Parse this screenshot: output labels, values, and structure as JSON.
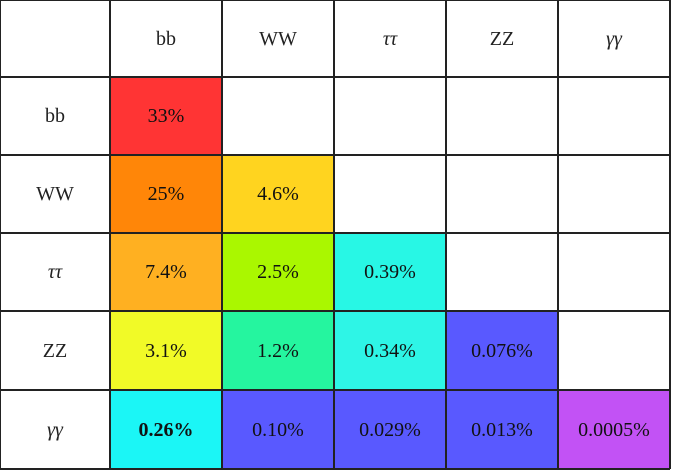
{
  "chart_data": {
    "type": "heatmap",
    "title": "",
    "xlabel": "",
    "ylabel": "",
    "x_categories": [
      "bb",
      "WW",
      "ττ",
      "ZZ",
      "γγ"
    ],
    "y_categories": [
      "bb",
      "WW",
      "ττ",
      "ZZ",
      "γγ"
    ],
    "cells": [
      {
        "row": "bb",
        "col": "bb",
        "value": 33,
        "label": "33%",
        "color": "#ff3434",
        "bold": false
      },
      {
        "row": "WW",
        "col": "bb",
        "value": 25,
        "label": "25%",
        "color": "#ff8608",
        "bold": false
      },
      {
        "row": "WW",
        "col": "WW",
        "value": 4.6,
        "label": "4.6%",
        "color": "#ffd41f",
        "bold": false
      },
      {
        "row": "ττ",
        "col": "bb",
        "value": 7.4,
        "label": "7.4%",
        "color": "#ffb021",
        "bold": false
      },
      {
        "row": "ττ",
        "col": "WW",
        "value": 2.5,
        "label": "2.5%",
        "color": "#aaf700",
        "bold": false
      },
      {
        "row": "ττ",
        "col": "ττ",
        "value": 0.39,
        "label": "0.39%",
        "color": "#28f7e5",
        "bold": false
      },
      {
        "row": "ZZ",
        "col": "bb",
        "value": 3.1,
        "label": "3.1%",
        "color": "#f1fa27",
        "bold": false
      },
      {
        "row": "ZZ",
        "col": "WW",
        "value": 1.2,
        "label": "1.2%",
        "color": "#25f59f",
        "bold": false
      },
      {
        "row": "ZZ",
        "col": "ττ",
        "value": 0.34,
        "label": "0.34%",
        "color": "#2ef5e6",
        "bold": false
      },
      {
        "row": "ZZ",
        "col": "ZZ",
        "value": 0.076,
        "label": "0.076%",
        "color": "#5959ff",
        "bold": false
      },
      {
        "row": "γγ",
        "col": "bb",
        "value": 0.26,
        "label": "0.26%",
        "color": "#1bf6f6",
        "bold": true
      },
      {
        "row": "γγ",
        "col": "WW",
        "value": 0.1,
        "label": "0.10%",
        "color": "#5959ff",
        "bold": false
      },
      {
        "row": "γγ",
        "col": "ττ",
        "value": 0.029,
        "label": "0.029%",
        "color": "#5959ff",
        "bold": false
      },
      {
        "row": "γγ",
        "col": "ZZ",
        "value": 0.013,
        "label": "0.013%",
        "color": "#5959ff",
        "bold": false
      },
      {
        "row": "γγ",
        "col": "γγ",
        "value": 0.0005,
        "label": "0.0005%",
        "color": "#c252f5",
        "bold": false
      }
    ]
  }
}
